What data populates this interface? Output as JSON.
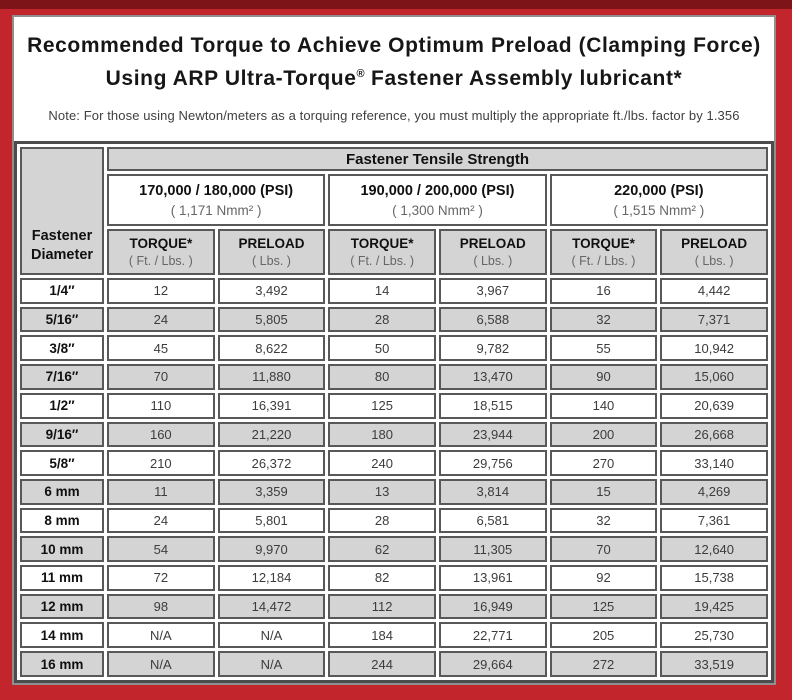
{
  "title": {
    "line1": "Recommended Torque to Achieve Optimum Preload (Clamping Force)",
    "line2_pre": "Using ARP Ultra-Torque",
    "line2_sup": "®",
    "line2_post": " Fastener Assembly lubricant*"
  },
  "note": "Note: For those using Newton/meters as a torquing reference, you must multiply the appropriate ft./lbs. factor by 1.356",
  "colors": {
    "frame_red": "#c2262c",
    "frame_dark_red": "#7d1417",
    "cell_gray": "#d4d4d4",
    "border_dark": "#585858"
  },
  "table": {
    "tensile_header": "Fastener Tensile Strength",
    "diameter_header": {
      "line1": "Fastener",
      "line2": "Diameter"
    },
    "groups": [
      {
        "psi": "170,000 / 180,000 (PSI)",
        "nmm": "( 1,171 Nmm² )"
      },
      {
        "psi": "190,000 / 200,000 (PSI)",
        "nmm": "( 1,300 Nmm² )"
      },
      {
        "psi": "220,000 (PSI)",
        "nmm": "( 1,515 Nmm² )"
      }
    ],
    "col_headers": {
      "torque_label": "TORQUE*",
      "torque_unit": "( Ft. / Lbs. )",
      "preload_label": "PRELOAD",
      "preload_unit": "( Lbs. )"
    },
    "rows": [
      {
        "diameter": "1/4″",
        "values": [
          "12",
          "3,492",
          "14",
          "3,967",
          "16",
          "4,442"
        ]
      },
      {
        "diameter": "5/16″",
        "values": [
          "24",
          "5,805",
          "28",
          "6,588",
          "32",
          "7,371"
        ]
      },
      {
        "diameter": "3/8″",
        "values": [
          "45",
          "8,622",
          "50",
          "9,782",
          "55",
          "10,942"
        ]
      },
      {
        "diameter": "7/16″",
        "values": [
          "70",
          "11,880",
          "80",
          "13,470",
          "90",
          "15,060"
        ]
      },
      {
        "diameter": "1/2″",
        "values": [
          "110",
          "16,391",
          "125",
          "18,515",
          "140",
          "20,639"
        ]
      },
      {
        "diameter": "9/16″",
        "values": [
          "160",
          "21,220",
          "180",
          "23,944",
          "200",
          "26,668"
        ]
      },
      {
        "diameter": "5/8″",
        "values": [
          "210",
          "26,372",
          "240",
          "29,756",
          "270",
          "33,140"
        ]
      },
      {
        "diameter": "6 mm",
        "values": [
          "11",
          "3,359",
          "13",
          "3,814",
          "15",
          "4,269"
        ]
      },
      {
        "diameter": "8 mm",
        "values": [
          "24",
          "5,801",
          "28",
          "6,581",
          "32",
          "7,361"
        ]
      },
      {
        "diameter": "10 mm",
        "values": [
          "54",
          "9,970",
          "62",
          "11,305",
          "70",
          "12,640"
        ]
      },
      {
        "diameter": "11 mm",
        "values": [
          "72",
          "12,184",
          "82",
          "13,961",
          "92",
          "15,738"
        ]
      },
      {
        "diameter": "12 mm",
        "values": [
          "98",
          "14,472",
          "112",
          "16,949",
          "125",
          "19,425"
        ]
      },
      {
        "diameter": "14 mm",
        "values": [
          "N/A",
          "N/A",
          "184",
          "22,771",
          "205",
          "25,730"
        ]
      },
      {
        "diameter": "16 mm",
        "values": [
          "N/A",
          "N/A",
          "244",
          "29,664",
          "272",
          "33,519"
        ]
      }
    ]
  }
}
